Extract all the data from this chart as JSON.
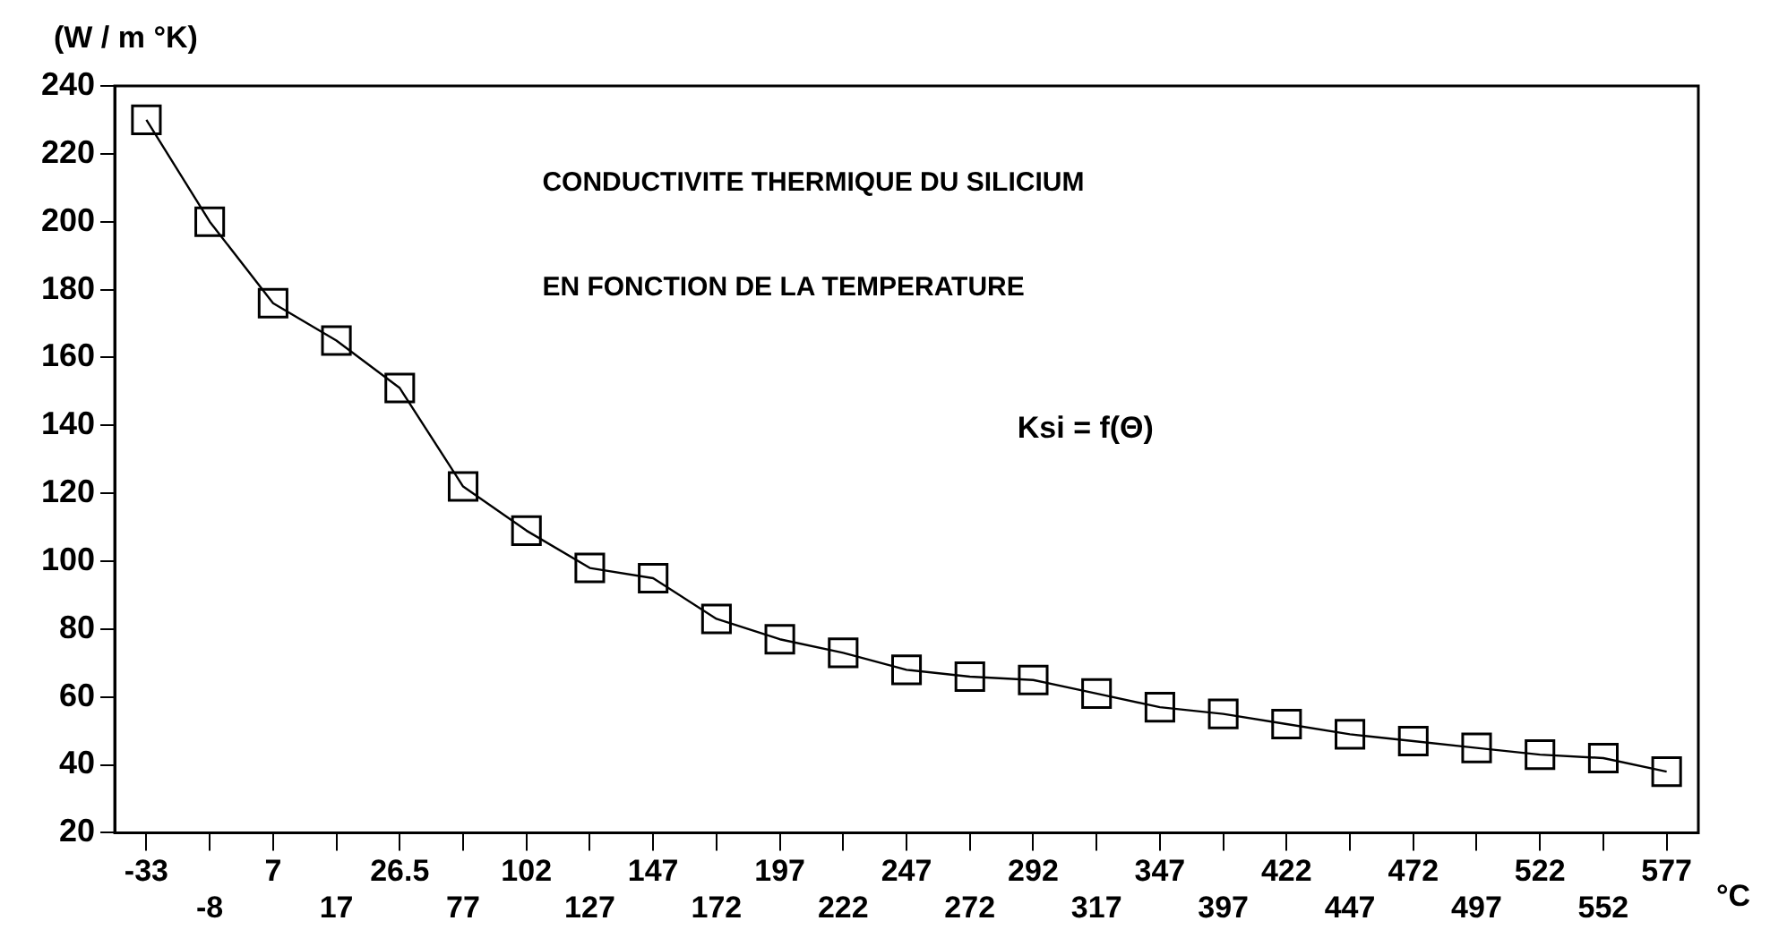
{
  "chart_data": {
    "type": "line",
    "title": "CONDUCTIVITE THERMIQUE DU SILICIUM",
    "subtitle": "EN FONCTION DE LA TEMPERATURE",
    "annotations": [
      "Ksi = f(Θ)"
    ],
    "ylabel": "(W / m °K)",
    "xlabel": "°C",
    "categories": [
      "-33",
      "-8",
      "7",
      "17",
      "26.5",
      "77",
      "102",
      "127",
      "147",
      "172",
      "197",
      "222",
      "247",
      "272",
      "292",
      "317",
      "347",
      "397",
      "422",
      "447",
      "472",
      "497",
      "522",
      "552",
      "577"
    ],
    "series": [
      {
        "color": "#000000",
        "values": [
          230,
          200,
          176,
          165,
          151,
          122,
          109,
          98,
          95,
          83,
          77,
          73,
          68,
          66,
          65,
          61,
          57,
          55,
          52,
          49,
          47,
          45,
          43,
          42,
          38
        ]
      }
    ],
    "ylim": [
      20,
      240
    ],
    "yticks": [
      20,
      40,
      60,
      80,
      100,
      120,
      140,
      160,
      180,
      200,
      220,
      240
    ],
    "grid": false,
    "legend": false,
    "marker": "square",
    "line_style": "solid"
  }
}
